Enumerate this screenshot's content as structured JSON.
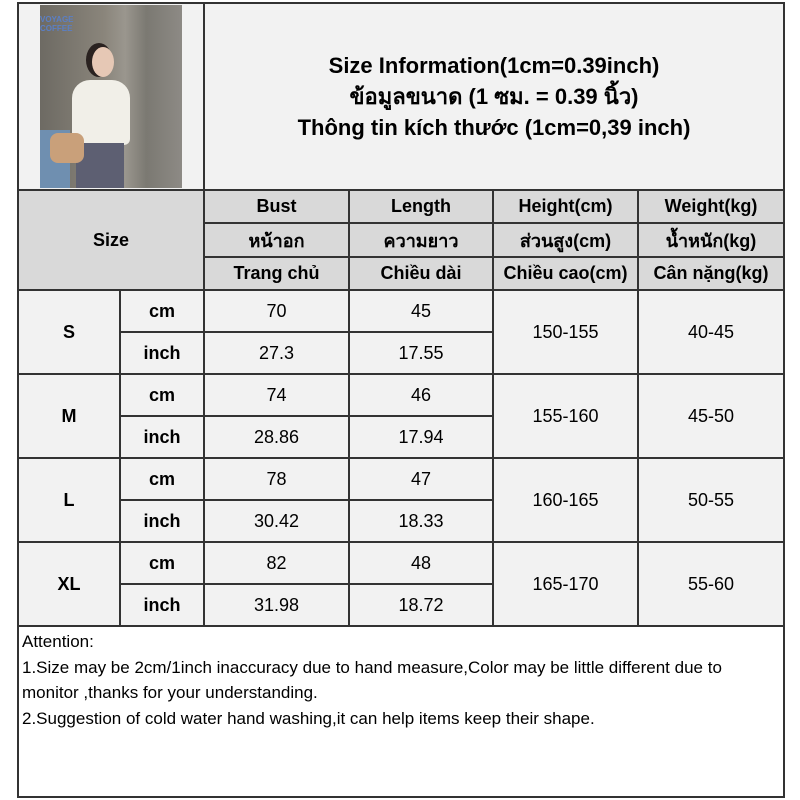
{
  "title_lines": [
    "Size Information(1cm=0.39inch)",
    "ข้อมูลขนาด (1 ซม. = 0.39 นิ้ว)",
    "Thông tin kích thước (1cm=0,39 inch)"
  ],
  "photo": {
    "sign_text": "VOYAGE\nCOFFEE"
  },
  "size_label": "Size",
  "headers": [
    [
      "Bust",
      "Length",
      "Height(cm)",
      "Weight(kg)"
    ],
    [
      "หน้าอก",
      "ความยาว",
      "ส่วนสูง(cm)",
      "น้ำหนัก(kg)"
    ],
    [
      "Trang chủ",
      "Chiều dài",
      "Chiều cao(cm)",
      "Cân nặng(kg)"
    ]
  ],
  "unit_cm": "cm",
  "unit_inch": "inch",
  "sizes": [
    {
      "size": "S",
      "bust_cm": "70",
      "length_cm": "45",
      "bust_inch": "27.3",
      "length_inch": "17.55",
      "height": "150-155",
      "weight": "40-45"
    },
    {
      "size": "M",
      "bust_cm": "74",
      "length_cm": "46",
      "bust_inch": "28.86",
      "length_inch": "17.94",
      "height": "155-160",
      "weight": "45-50"
    },
    {
      "size": "L",
      "bust_cm": "78",
      "length_cm": "47",
      "bust_inch": "30.42",
      "length_inch": "18.33",
      "height": "160-165",
      "weight": "50-55"
    },
    {
      "size": "XL",
      "bust_cm": "82",
      "length_cm": "48",
      "bust_inch": "31.98",
      "length_inch": "18.72",
      "height": "165-170",
      "weight": "55-60"
    }
  ],
  "attention": {
    "heading": "Attention:",
    "notes": [
      "1.Size may be 2cm/1inch inaccuracy due to hand measure,Color may be little different due to monitor ,thanks for your understanding.",
      "2.Suggestion of cold water hand washing,it can help items keep their shape."
    ]
  }
}
